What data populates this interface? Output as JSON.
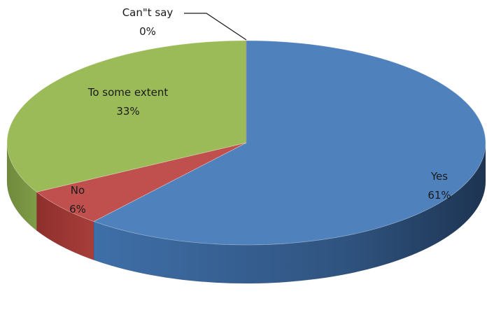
{
  "chart_data": {
    "type": "pie",
    "style": "3d",
    "title": "",
    "legend": "none",
    "slices": [
      {
        "label": "Yes",
        "value": 61,
        "value_label": "61%",
        "color": "#4f81bd"
      },
      {
        "label": "No",
        "value": 6,
        "value_label": "6%",
        "color": "#c0504d"
      },
      {
        "label": "To some extent",
        "value": 33,
        "value_label": "33%",
        "color": "#9bbb59"
      },
      {
        "label": "Can\"t say",
        "value": 0,
        "value_label": "0%",
        "color": "#8064a2"
      }
    ]
  }
}
